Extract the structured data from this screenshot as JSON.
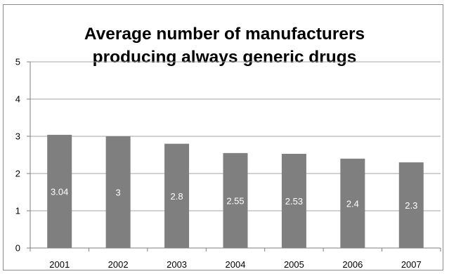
{
  "chart_data": {
    "type": "bar",
    "title_lines": [
      "Average number of manufacturers",
      "producing always generic drugs"
    ],
    "categories": [
      "2001",
      "2002",
      "2003",
      "2004",
      "2005",
      "2006",
      "2007"
    ],
    "values": [
      3.04,
      3,
      2.8,
      2.55,
      2.53,
      2.4,
      2.3
    ],
    "data_labels": [
      "3.04",
      "3",
      "2.8",
      "2.55",
      "2.53",
      "2.4",
      "2.3"
    ],
    "y_ticks": [
      "0",
      "1",
      "2",
      "3",
      "4",
      "5"
    ],
    "ylim": [
      0,
      5
    ],
    "grid": true,
    "legend": "none",
    "bar_color": "#7f7f7f",
    "label_color": "#ffffff",
    "grid_color": "#a6a6a6"
  }
}
